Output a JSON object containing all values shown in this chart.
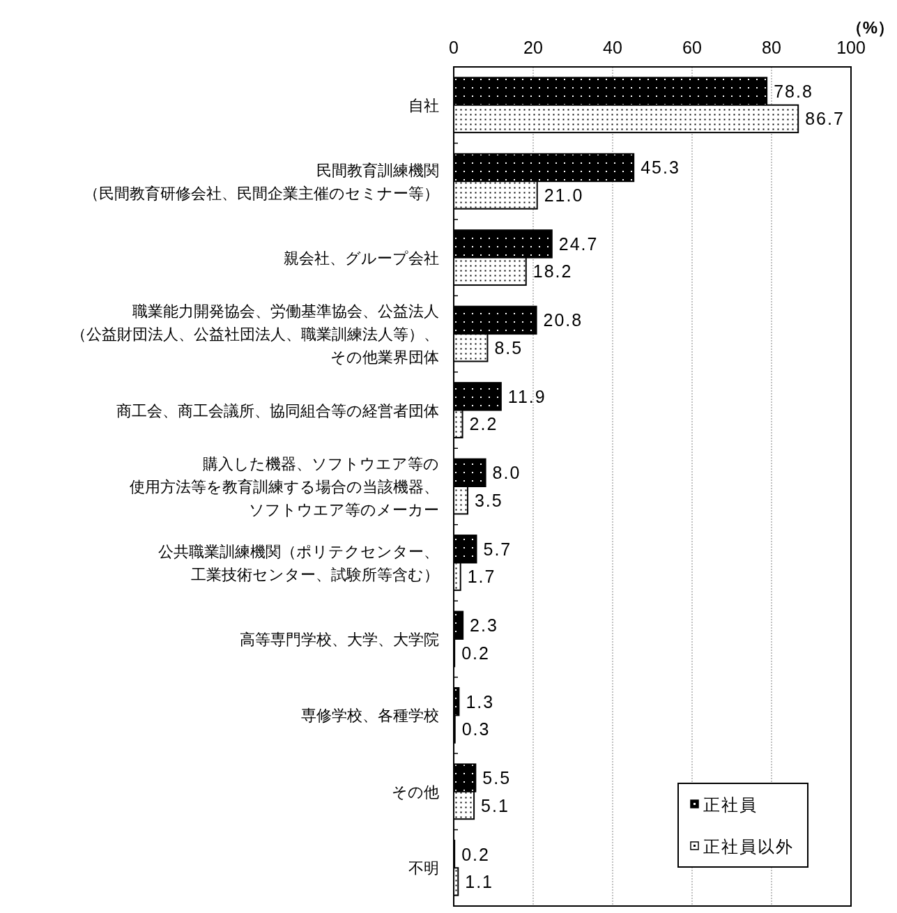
{
  "chart_data": {
    "type": "bar",
    "orientation": "horizontal",
    "xlabel": "（%）",
    "categories": [
      "自社",
      "民間教育訓練機関（民間教育研修会社、民間企業主催のセミナー等）",
      "親会社、グループ会社",
      "職業能力開発協会、労働基準協会、公益法人（公益財団法人、公益社団法人、職業訓練法人等）、その他業界団体",
      "商工会、商工会議所、協同組合等の経営者団体",
      "購入した機器、ソフトウエア等の使用方法等を教育訓練する場合の当該機器、ソフトウエア等のメーカー",
      "公共職業訓練機関（ポリテクセンター、工業技術センター、試験所等含む）",
      "高等専門学校、大学、大学院",
      "専修学校、各種学校",
      "その他",
      "不明"
    ],
    "series": [
      {
        "name": "正社員",
        "color": "#000000",
        "values": [
          78.8,
          45.3,
          24.7,
          20.8,
          11.9,
          8.0,
          5.7,
          2.3,
          1.3,
          5.5,
          0.2
        ],
        "value_labels": [
          "78.8",
          "45.3",
          "24.7",
          "20.8",
          "11.9",
          "8.0",
          "5.7",
          "2.3",
          "1.3",
          "5.5",
          "0.2"
        ]
      },
      {
        "name": "正社員以外",
        "color": "#ffffff",
        "values": [
          86.7,
          21.0,
          18.2,
          8.5,
          2.2,
          3.5,
          1.7,
          0.2,
          0.3,
          5.1,
          1.1
        ],
        "value_labels": [
          "86.7",
          "21.0",
          "18.2",
          "8.5",
          "2.2",
          "3.5",
          "1.7",
          "0.2",
          "0.3",
          "5.1",
          "1.1"
        ]
      }
    ],
    "xlim": [
      0,
      100
    ],
    "xticks": [
      0,
      20,
      40,
      60,
      80,
      100
    ],
    "grid": "x",
    "legend": "bottom right"
  }
}
